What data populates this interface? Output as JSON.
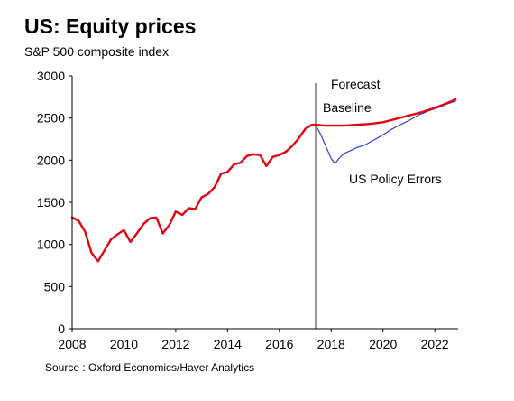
{
  "title": "US: Equity prices",
  "subtitle": "S&P 500 composite index",
  "source": "Source : Oxford Economics/Haver Analytics",
  "chart_data": {
    "type": "line",
    "xlim": [
      2008,
      2022.9
    ],
    "ylim": [
      0,
      3000
    ],
    "yticks": [
      0,
      500,
      1000,
      1500,
      2000,
      2500,
      3000
    ],
    "xticks": [
      2008,
      2010,
      2012,
      2014,
      2016,
      2018,
      2020,
      2022
    ],
    "grid": false,
    "forecast_start": 2017.4,
    "annotations": {
      "forecast": "Forecast",
      "baseline": "Baseline",
      "policy_errors": "US Policy Errors"
    },
    "series": [
      {
        "name": "Baseline",
        "color": "#e3000f",
        "x": [
          2008.0,
          2008.25,
          2008.5,
          2008.75,
          2009.0,
          2009.25,
          2009.5,
          2009.75,
          2010.0,
          2010.25,
          2010.5,
          2010.75,
          2011.0,
          2011.25,
          2011.5,
          2011.75,
          2012.0,
          2012.25,
          2012.5,
          2012.75,
          2013.0,
          2013.25,
          2013.5,
          2013.75,
          2014.0,
          2014.25,
          2014.5,
          2014.75,
          2015.0,
          2015.25,
          2015.5,
          2015.75,
          2016.0,
          2016.25,
          2016.5,
          2016.75,
          2017.0,
          2017.25,
          2017.4,
          2017.75,
          2018.0,
          2018.5,
          2019.0,
          2019.5,
          2020.0,
          2020.5,
          2021.0,
          2021.5,
          2022.0,
          2022.5,
          2022.8
        ],
        "y": [
          1320,
          1280,
          1150,
          900,
          800,
          930,
          1060,
          1120,
          1170,
          1030,
          1130,
          1240,
          1310,
          1320,
          1130,
          1230,
          1390,
          1350,
          1430,
          1420,
          1560,
          1600,
          1680,
          1840,
          1860,
          1950,
          1970,
          2050,
          2070,
          2060,
          1930,
          2040,
          2060,
          2100,
          2170,
          2260,
          2370,
          2420,
          2420,
          2410,
          2410,
          2410,
          2420,
          2430,
          2450,
          2490,
          2530,
          2570,
          2620,
          2680,
          2720
        ]
      },
      {
        "name": "US Policy Errors",
        "color": "#2f3fd0",
        "x": [
          2017.4,
          2017.6,
          2017.8,
          2018.0,
          2018.15,
          2018.3,
          2018.5,
          2018.8,
          2019.0,
          2019.3,
          2019.6,
          2020.0,
          2020.3,
          2020.6,
          2021.0,
          2021.4,
          2021.8,
          2022.2,
          2022.5,
          2022.8
        ],
        "y": [
          2420,
          2300,
          2160,
          2020,
          1960,
          2020,
          2080,
          2120,
          2150,
          2180,
          2230,
          2300,
          2360,
          2410,
          2470,
          2540,
          2590,
          2630,
          2670,
          2700
        ]
      }
    ]
  }
}
